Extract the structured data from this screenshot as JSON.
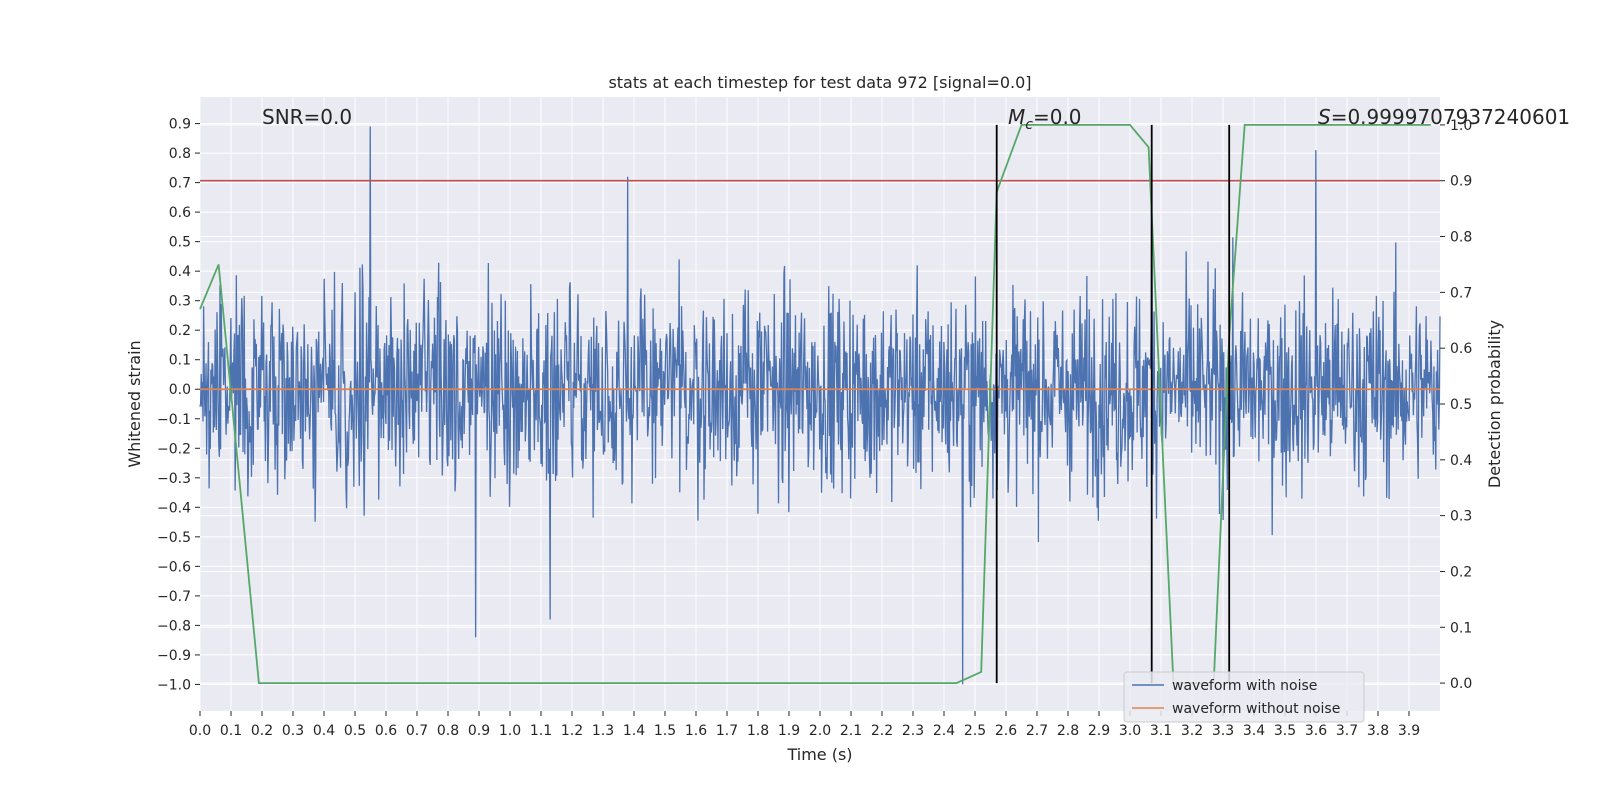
{
  "chart_data": {
    "type": "line",
    "title": "stats at each timestep for test data 972 [signal=0.0]",
    "xlabel": "Time (s)",
    "ylabel": "Whitened strain",
    "y2label": "Detection probability",
    "xlim": [
      0.0,
      4.0
    ],
    "ylim": [
      -1.09,
      0.99
    ],
    "y2lim": [
      -0.05,
      1.05
    ],
    "xticks": [
      "0.0",
      "0.1",
      "0.2",
      "0.3",
      "0.4",
      "0.5",
      "0.6",
      "0.7",
      "0.8",
      "0.9",
      "1.0",
      "1.1",
      "1.2",
      "1.3",
      "1.4",
      "1.5",
      "1.6",
      "1.7",
      "1.8",
      "1.9",
      "2.0",
      "2.1",
      "2.2",
      "2.3",
      "2.4",
      "2.5",
      "2.6",
      "2.7",
      "2.8",
      "2.9",
      "3.0",
      "3.1",
      "3.2",
      "3.3",
      "3.4",
      "3.5",
      "3.6",
      "3.7",
      "3.8",
      "3.9"
    ],
    "yticks": [
      "0.9",
      "0.8",
      "0.7",
      "0.6",
      "0.5",
      "0.4",
      "0.3",
      "0.2",
      "0.1",
      "0.0",
      "−0.1",
      "−0.2",
      "−0.3",
      "−0.4",
      "−0.5",
      "−0.6",
      "−0.7",
      "−0.8",
      "−0.9",
      "−1.0"
    ],
    "y2ticks": [
      "1.0",
      "0.9",
      "0.8",
      "0.7",
      "0.6",
      "0.5",
      "0.4",
      "0.3",
      "0.2",
      "0.1",
      "0.0"
    ],
    "threshold": 0.9,
    "annotations": {
      "snr": "SNR=0.0",
      "mc_symbol": "M",
      "mc_sub": "c",
      "mc_value": "=0.0",
      "s_symbol": "S",
      "s_value": "=0.9999707937240601"
    },
    "event_lines_x": [
      2.57,
      3.07,
      3.32
    ],
    "noise_spikes": [
      {
        "x": 0.55,
        "y": 0.89
      },
      {
        "x": 0.89,
        "y": -0.84
      },
      {
        "x": 1.13,
        "y": -0.78
      },
      {
        "x": 1.38,
        "y": 0.72
      },
      {
        "x": 2.46,
        "y": -1.0
      },
      {
        "x": 3.07,
        "y": 0.87
      },
      {
        "x": 3.6,
        "y": 0.81
      }
    ],
    "series": [
      {
        "name": "waveform with noise",
        "color": "#4c72b0",
        "amplitude": 0.42,
        "samples": 2048
      },
      {
        "name": "waveform without noise",
        "color": "#dd8452",
        "x": [
          0.0,
          4.0
        ],
        "y": [
          0.0,
          0.0
        ]
      },
      {
        "name": "detection probability",
        "color": "#55a868",
        "axis": "right",
        "x": [
          0.0,
          0.06,
          0.1,
          0.19,
          0.25,
          2.44,
          2.48,
          2.52,
          2.57,
          2.65,
          3.0,
          3.06,
          3.1,
          3.14,
          3.27,
          3.32,
          3.37,
          3.97
        ],
        "y": [
          0.67,
          0.75,
          0.52,
          0.0,
          0.0,
          0.0,
          0.01,
          0.02,
          0.88,
          1.0,
          1.0,
          0.96,
          0.48,
          0.0,
          0.0,
          0.62,
          1.0,
          1.0
        ]
      }
    ],
    "legend": {
      "position": "lower-right",
      "entries": [
        {
          "label": "waveform with noise",
          "color": "#4c72b0"
        },
        {
          "label": "waveform without noise",
          "color": "#dd8452"
        }
      ]
    },
    "colors": {
      "background": "#eaeaf2",
      "grid": "#ffffff",
      "threshold": "#c44e52",
      "event_line": "#000000"
    }
  }
}
